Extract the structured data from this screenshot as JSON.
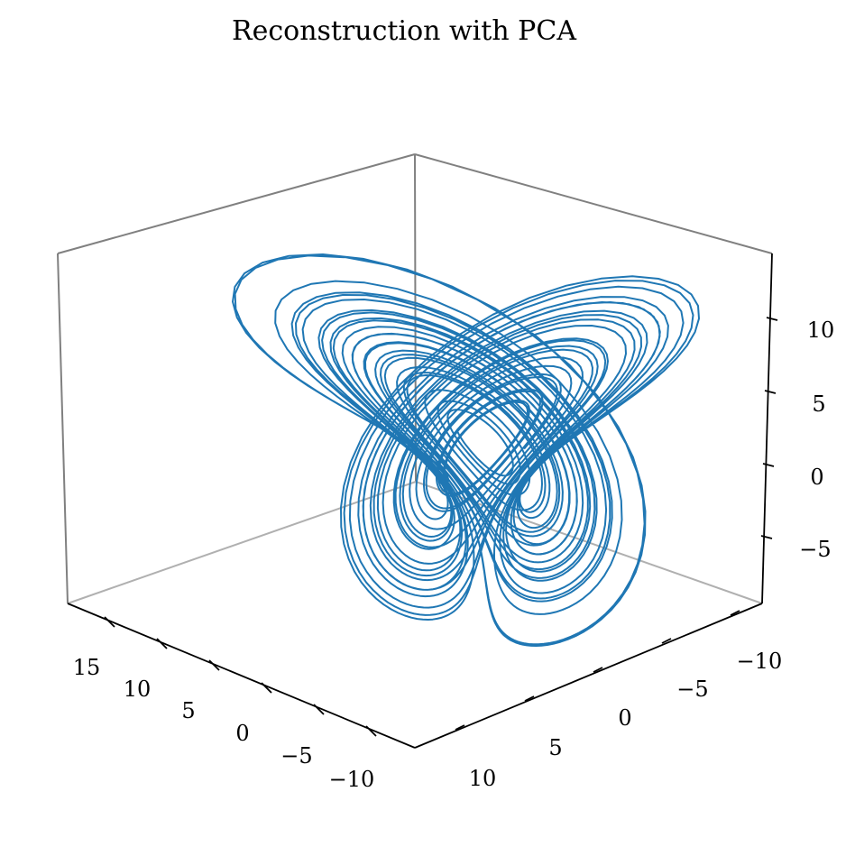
{
  "chart_data": {
    "type": "line",
    "projection": "3d",
    "title": "Reconstruction with PCA",
    "xlabel": "",
    "ylabel": "",
    "zlabel": "",
    "grid": false,
    "x_ticks": [
      "15",
      "10",
      "5",
      "0",
      "−5",
      "−10"
    ],
    "x_tick_values": [
      15,
      10,
      5,
      0,
      -5,
      -10
    ],
    "y_ticks": [
      "−10",
      "−5",
      "0",
      "5",
      "10"
    ],
    "y_tick_values": [
      -10,
      -5,
      0,
      5,
      10
    ],
    "z_ticks": [
      "10",
      "5",
      "0",
      "−5"
    ],
    "z_tick_values": [
      10,
      5,
      0,
      -5
    ],
    "xlim": [
      -12.6,
      19.8
    ],
    "ylim": [
      -13.6,
      13.0
    ],
    "zlim": [
      -8.7,
      14.1
    ],
    "series": [
      {
        "color": "#1f77b4",
        "description": "two-lobed attractor trajectory (Lorenz-like), many overlapping loops",
        "curve": "lorenz",
        "params": {
          "sigma": 10,
          "rho": 28,
          "beta": 2.6667,
          "dt": 0.005,
          "steps": 7000,
          "transient": 400,
          "start": [
            1.0,
            1.0,
            1.0
          ]
        }
      }
    ],
    "colors": {
      "series": "#1f77b4",
      "pane_edge": "#808080",
      "pane_edge_light": "#b0b0b0",
      "axis": "#000000"
    }
  }
}
